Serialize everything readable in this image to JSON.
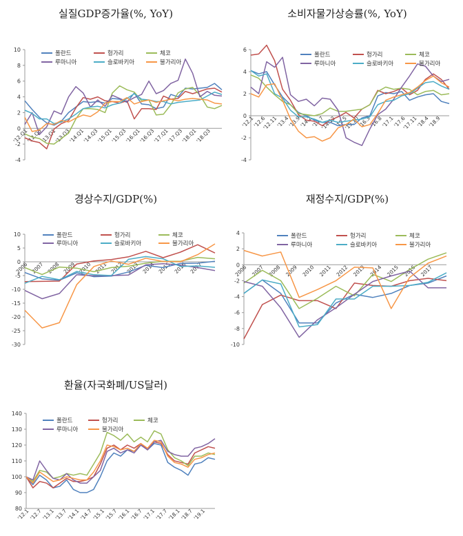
{
  "colors": {
    "poland": "#4f81bd",
    "hungary": "#c0504d",
    "czech": "#9bbb59",
    "romania": "#8064a2",
    "slovakia": "#4bacc6",
    "bulgaria": "#f79646"
  },
  "chart_data": [
    {
      "id": "gdp",
      "type": "line",
      "title": "실질GDP증가율(%, YoY)",
      "ylim": [
        -4,
        10
      ],
      "yticks": [
        -4,
        -2,
        0,
        2,
        4,
        6,
        8,
        10
      ],
      "x_tick_labels": [
        "'12.Q1",
        "'12.Q3",
        "'13.Q1",
        "'13.Q3",
        "'14.Q1",
        "'14.Q3",
        "'15.Q1",
        "'15.Q3",
        "'16.Q1",
        "'16.Q3",
        "'17.Q1",
        "'17.Q3",
        "'18.Q1",
        "'18.Q3"
      ],
      "legend": "top-left",
      "series": [
        {
          "name": "폴란드",
          "color_key": "poland",
          "values": [
            3.5,
            2.4,
            1.4,
            0.7,
            0.4,
            0.9,
            2.0,
            2.7,
            3.4,
            3.3,
            3.4,
            3.2,
            3.8,
            3.7,
            3.3,
            4.5,
            3.1,
            3.0,
            2.5,
            2.7,
            4.3,
            4.0,
            5.1,
            5.0,
            5.1,
            5.2,
            5.7,
            4.9
          ]
        },
        {
          "name": "헝가리",
          "color_key": "hungary",
          "values": [
            -1.2,
            -1.6,
            -1.8,
            -2.6,
            -0.1,
            0.6,
            1.0,
            2.6,
            3.9,
            3.7,
            4.0,
            3.5,
            3.4,
            3.2,
            3.5,
            1.2,
            2.5,
            2.5,
            2.4,
            4.1,
            3.7,
            3.8,
            4.7,
            4.4,
            4.7,
            5.0,
            5.1,
            4.6
          ]
        },
        {
          "name": "체코",
          "color_key": "czech",
          "values": [
            -0.7,
            -1.1,
            -1.3,
            -1.9,
            -2.0,
            -1.3,
            -0.6,
            1.2,
            2.5,
            2.5,
            2.4,
            2.0,
            4.5,
            5.4,
            4.9,
            4.6,
            3.5,
            3.6,
            1.7,
            1.8,
            3.0,
            4.5,
            5.0,
            5.2,
            4.2,
            2.7,
            2.5,
            2.9
          ]
        },
        {
          "name": "루마니아",
          "color_key": "romania",
          "values": [
            0.5,
            2.0,
            -0.8,
            0.2,
            2.2,
            1.8,
            4.0,
            5.3,
            4.5,
            2.7,
            3.6,
            2.8,
            4.2,
            3.8,
            3.4,
            3.9,
            4.3,
            6.0,
            4.4,
            4.8,
            5.7,
            6.1,
            8.8,
            7.0,
            4.0,
            4.7,
            4.2,
            4.1
          ]
        },
        {
          "name": "슬로바키아",
          "color_key": "slovakia",
          "values": [
            2.3,
            1.9,
            1.2,
            1.2,
            0.6,
            0.8,
            1.2,
            1.8,
            2.5,
            2.7,
            2.8,
            2.6,
            3.0,
            3.2,
            3.8,
            4.4,
            3.7,
            3.6,
            3.4,
            3.4,
            3.1,
            3.3,
            3.4,
            3.5,
            3.6,
            4.1,
            4.6,
            4.3
          ]
        },
        {
          "name": "불가리아",
          "color_key": "bulgaria",
          "values": [
            1.4,
            -0.4,
            -0.2,
            0.6,
            0.5,
            1.0,
            0.8,
            1.3,
            1.7,
            1.5,
            2.1,
            3.2,
            3.4,
            3.4,
            3.9,
            3.1,
            3.4,
            3.6,
            3.3,
            3.5,
            3.7,
            3.5,
            3.7,
            3.8,
            3.7,
            3.6,
            3.2,
            3.1
          ]
        }
      ]
    },
    {
      "id": "cpi",
      "type": "line",
      "title": "소비자물가상승률(%, YoY)",
      "ylim": [
        -4,
        6
      ],
      "yticks": [
        -4,
        -2,
        0,
        2,
        4,
        6
      ],
      "x_tick_labels": [
        "'12.1",
        "'12.6",
        "'12.11",
        "'13.4",
        "'13.9",
        "'14.2",
        "'14.7",
        "'14.12",
        "'15.5",
        "'15.10",
        "'16.3",
        "'16.8",
        "'17.1",
        "'17.6",
        "'17.11",
        "'18.4",
        "'18.9"
      ],
      "legend": "top-center",
      "series": [
        {
          "name": "폴란드",
          "color_key": "poland",
          "values": [
            4.1,
            3.8,
            4.0,
            2.8,
            1.7,
            1.0,
            0.3,
            0.0,
            -0.4,
            -0.6,
            -0.6,
            -0.9,
            -0.8,
            -0.8,
            -0.2,
            0.0,
            1.8,
            2.1,
            2.0,
            2.2,
            1.4,
            1.7,
            1.9,
            2.0,
            1.3,
            1.1
          ]
        },
        {
          "name": "헝가리",
          "color_key": "hungary",
          "values": [
            5.5,
            5.6,
            6.4,
            5.0,
            2.4,
            1.4,
            0.1,
            -0.4,
            -0.5,
            -0.9,
            -0.4,
            -0.1,
            0.3,
            -0.2,
            0.6,
            1.0,
            2.3,
            2.0,
            2.2,
            2.5,
            1.9,
            2.3,
            3.3,
            3.8,
            3.3,
            2.4
          ]
        },
        {
          "name": "체코",
          "color_key": "czech",
          "values": [
            3.7,
            3.4,
            2.6,
            1.9,
            1.3,
            1.0,
            0.2,
            0.1,
            0.0,
            0.2,
            0.7,
            0.4,
            0.4,
            0.5,
            0.6,
            1.0,
            2.2,
            2.6,
            2.4,
            2.5,
            2.4,
            1.9,
            2.2,
            2.3,
            1.9,
            2.0
          ]
        },
        {
          "name": "루마니아",
          "color_key": "romania",
          "values": [
            2.6,
            2.0,
            4.9,
            4.4,
            5.3,
            1.9,
            1.3,
            1.5,
            0.9,
            1.6,
            1.5,
            0.5,
            -2.0,
            -2.4,
            -2.7,
            -1.2,
            0.1,
            0.6,
            1.5,
            2.6,
            3.6,
            4.7,
            4.5,
            3.6,
            3.1,
            3.3
          ]
        },
        {
          "name": "슬로바키아",
          "color_key": "slovakia",
          "values": [
            4.1,
            3.6,
            3.8,
            2.0,
            1.6,
            0.5,
            -0.1,
            -0.1,
            -0.3,
            -0.6,
            -0.4,
            -0.6,
            -0.5,
            -0.4,
            -0.3,
            -0.1,
            1.0,
            1.3,
            1.4,
            1.8,
            2.0,
            2.5,
            3.0,
            3.1,
            2.7,
            2.4
          ]
        },
        {
          "name": "불가리아",
          "color_key": "bulgaria",
          "values": [
            2.0,
            1.7,
            2.8,
            2.9,
            1.4,
            -0.3,
            -1.4,
            -2.0,
            -1.9,
            -2.3,
            -2.0,
            -1.1,
            -0.8,
            -0.3,
            -1.0,
            -0.8,
            0.2,
            1.4,
            1.7,
            1.9,
            2.1,
            2.6,
            3.2,
            3.6,
            3.0,
            2.6
          ]
        }
      ]
    },
    {
      "id": "ca",
      "type": "line",
      "title": "경상수지/GDP(%)",
      "ylim": [
        -30,
        10
      ],
      "yticks": [
        -30,
        -25,
        -20,
        -15,
        -10,
        -5,
        0,
        5,
        10
      ],
      "x_tick_labels": [
        "2006",
        "2007",
        "2008",
        "2009",
        "2010",
        "2011",
        "2012",
        "2013",
        "2014",
        "2015",
        "2016",
        "2017"
      ],
      "legend": "top-left",
      "series": [
        {
          "name": "폴란드",
          "color_key": "poland",
          "values": [
            -3.9,
            -6.2,
            -6.7,
            -4.0,
            -5.4,
            -5.2,
            -3.7,
            -1.3,
            -2.1,
            -0.6,
            -0.5,
            0.2
          ]
        },
        {
          "name": "헝가리",
          "color_key": "hungary",
          "values": [
            -7.2,
            -7.1,
            -7.0,
            -0.8,
            0.3,
            0.8,
            1.8,
            3.8,
            1.5,
            3.5,
            6.2,
            3.2
          ]
        },
        {
          "name": "체코",
          "color_key": "czech",
          "values": [
            -2.1,
            -4.6,
            -1.9,
            -2.3,
            -3.6,
            -2.1,
            -1.6,
            -0.5,
            0.2,
            0.2,
            1.6,
            1.1
          ]
        },
        {
          "name": "루마니아",
          "color_key": "romania",
          "values": [
            -10.4,
            -13.4,
            -11.5,
            -4.7,
            -5.1,
            -5.0,
            -4.8,
            -1.1,
            -0.7,
            -1.2,
            -2.1,
            -3.2
          ]
        },
        {
          "name": "슬로바키아",
          "color_key": "slovakia",
          "values": [
            -7.8,
            -5.3,
            -6.5,
            -3.5,
            -4.7,
            -5.0,
            0.9,
            1.9,
            1.1,
            -1.7,
            -1.5,
            -2.0
          ]
        },
        {
          "name": "불가리아",
          "color_key": "bulgaria",
          "values": [
            -17.6,
            -24.0,
            -22.1,
            -8.3,
            -1.7,
            0.3,
            -0.9,
            1.3,
            0.1,
            0.0,
            2.6,
            6.5
          ]
        }
      ]
    },
    {
      "id": "fiscal",
      "type": "line",
      "title": "재정수지/GDP(%)",
      "ylim": [
        -10,
        4
      ],
      "yticks": [
        -10,
        -8,
        -6,
        -4,
        -2,
        0,
        2,
        4
      ],
      "x_tick_labels": [
        "2006",
        "2007",
        "2008",
        "2009",
        "2010",
        "2011",
        "2012",
        "2013",
        "2014",
        "2015",
        "2016",
        "2017"
      ],
      "legend": "top-left",
      "series": [
        {
          "name": "폴란드",
          "color_key": "poland",
          "values": [
            -3.6,
            -1.9,
            -3.6,
            -7.3,
            -7.3,
            -4.8,
            -3.7,
            -4.1,
            -3.6,
            -2.6,
            -2.3,
            -1.4
          ]
        },
        {
          "name": "헝가리",
          "color_key": "hungary",
          "values": [
            -9.3,
            -5.0,
            -3.8,
            -4.5,
            -4.5,
            -5.5,
            -2.3,
            -2.6,
            -2.7,
            -2.0,
            -1.7,
            -2.0
          ]
        },
        {
          "name": "체코",
          "color_key": "czech",
          "values": [
            -2.3,
            -0.7,
            -2.0,
            -5.5,
            -4.2,
            -2.7,
            -3.9,
            -1.2,
            -2.1,
            -0.6,
            0.7,
            1.5
          ]
        },
        {
          "name": "루마니아",
          "color_key": "romania",
          "values": [
            -2.1,
            -2.7,
            -5.4,
            -9.1,
            -6.9,
            -5.4,
            -3.7,
            -2.1,
            -1.4,
            -0.8,
            -2.9,
            -2.9
          ]
        },
        {
          "name": "슬로바키아",
          "color_key": "slovakia",
          "values": [
            -3.6,
            -1.9,
            -2.4,
            -7.8,
            -7.5,
            -4.3,
            -4.3,
            -2.7,
            -2.7,
            -2.6,
            -2.2,
            -1.0
          ]
        },
        {
          "name": "불가리아",
          "color_key": "bulgaria",
          "values": [
            1.8,
            1.1,
            1.6,
            -4.1,
            -3.1,
            -2.0,
            -0.3,
            -0.4,
            -5.5,
            -1.6,
            0.2,
            1.1
          ]
        }
      ]
    },
    {
      "id": "fx",
      "type": "line",
      "title": "환율(자국화폐/US달러)",
      "ylim": [
        80,
        140
      ],
      "yticks": [
        80,
        90,
        100,
        110,
        120,
        130,
        140
      ],
      "x_tick_labels": [
        "'12.1",
        "'12.7",
        "'13.1",
        "'13.7",
        "'14.1",
        "'14.7",
        "'15.1",
        "'15.7",
        "'16.1",
        "'16.7",
        "'17.1",
        "'17.7",
        "'18.1",
        "'18.7",
        "'19.1"
      ],
      "legend": "top-left",
      "series": [
        {
          "name": "폴란드",
          "color_key": "poland",
          "values": [
            100,
            95,
            101,
            98,
            93,
            94,
            98,
            92,
            90,
            90,
            92,
            100,
            110,
            115,
            113,
            117,
            116,
            120,
            117,
            121,
            120,
            109,
            106,
            104,
            101,
            108,
            109,
            112,
            111
          ]
        },
        {
          "name": "헝가리",
          "color_key": "hungary",
          "values": [
            100,
            93,
            97,
            96,
            93,
            96,
            99,
            97,
            97,
            98,
            100,
            108,
            118,
            120,
            117,
            120,
            118,
            121,
            117,
            122,
            121,
            114,
            110,
            109,
            108,
            115,
            117,
            119,
            118
          ]
        },
        {
          "name": "체코",
          "color_key": "czech",
          "values": [
            100,
            97,
            104,
            103,
            99,
            100,
            102,
            101,
            102,
            101,
            108,
            115,
            128,
            126,
            123,
            127,
            122,
            125,
            122,
            129,
            127,
            117,
            112,
            110,
            107,
            113,
            113,
            115,
            114
          ]
        },
        {
          "name": "루마니아",
          "color_key": "romania",
          "values": [
            100,
            98,
            110,
            104,
            99,
            98,
            102,
            98,
            96,
            96,
            100,
            104,
            116,
            118,
            115,
            117,
            115,
            120,
            117,
            122,
            123,
            116,
            114,
            113,
            113,
            118,
            119,
            121,
            124
          ]
        },
        {
          "name": "불가리아",
          "color_key": "bulgaria",
          "values": [
            100,
            96,
            103,
            100,
            97,
            98,
            100,
            99,
            98,
            98,
            103,
            110,
            120,
            119,
            117,
            118,
            116,
            121,
            118,
            123,
            122,
            113,
            109,
            108,
            106,
            111,
            112,
            114,
            115
          ]
        }
      ]
    }
  ]
}
